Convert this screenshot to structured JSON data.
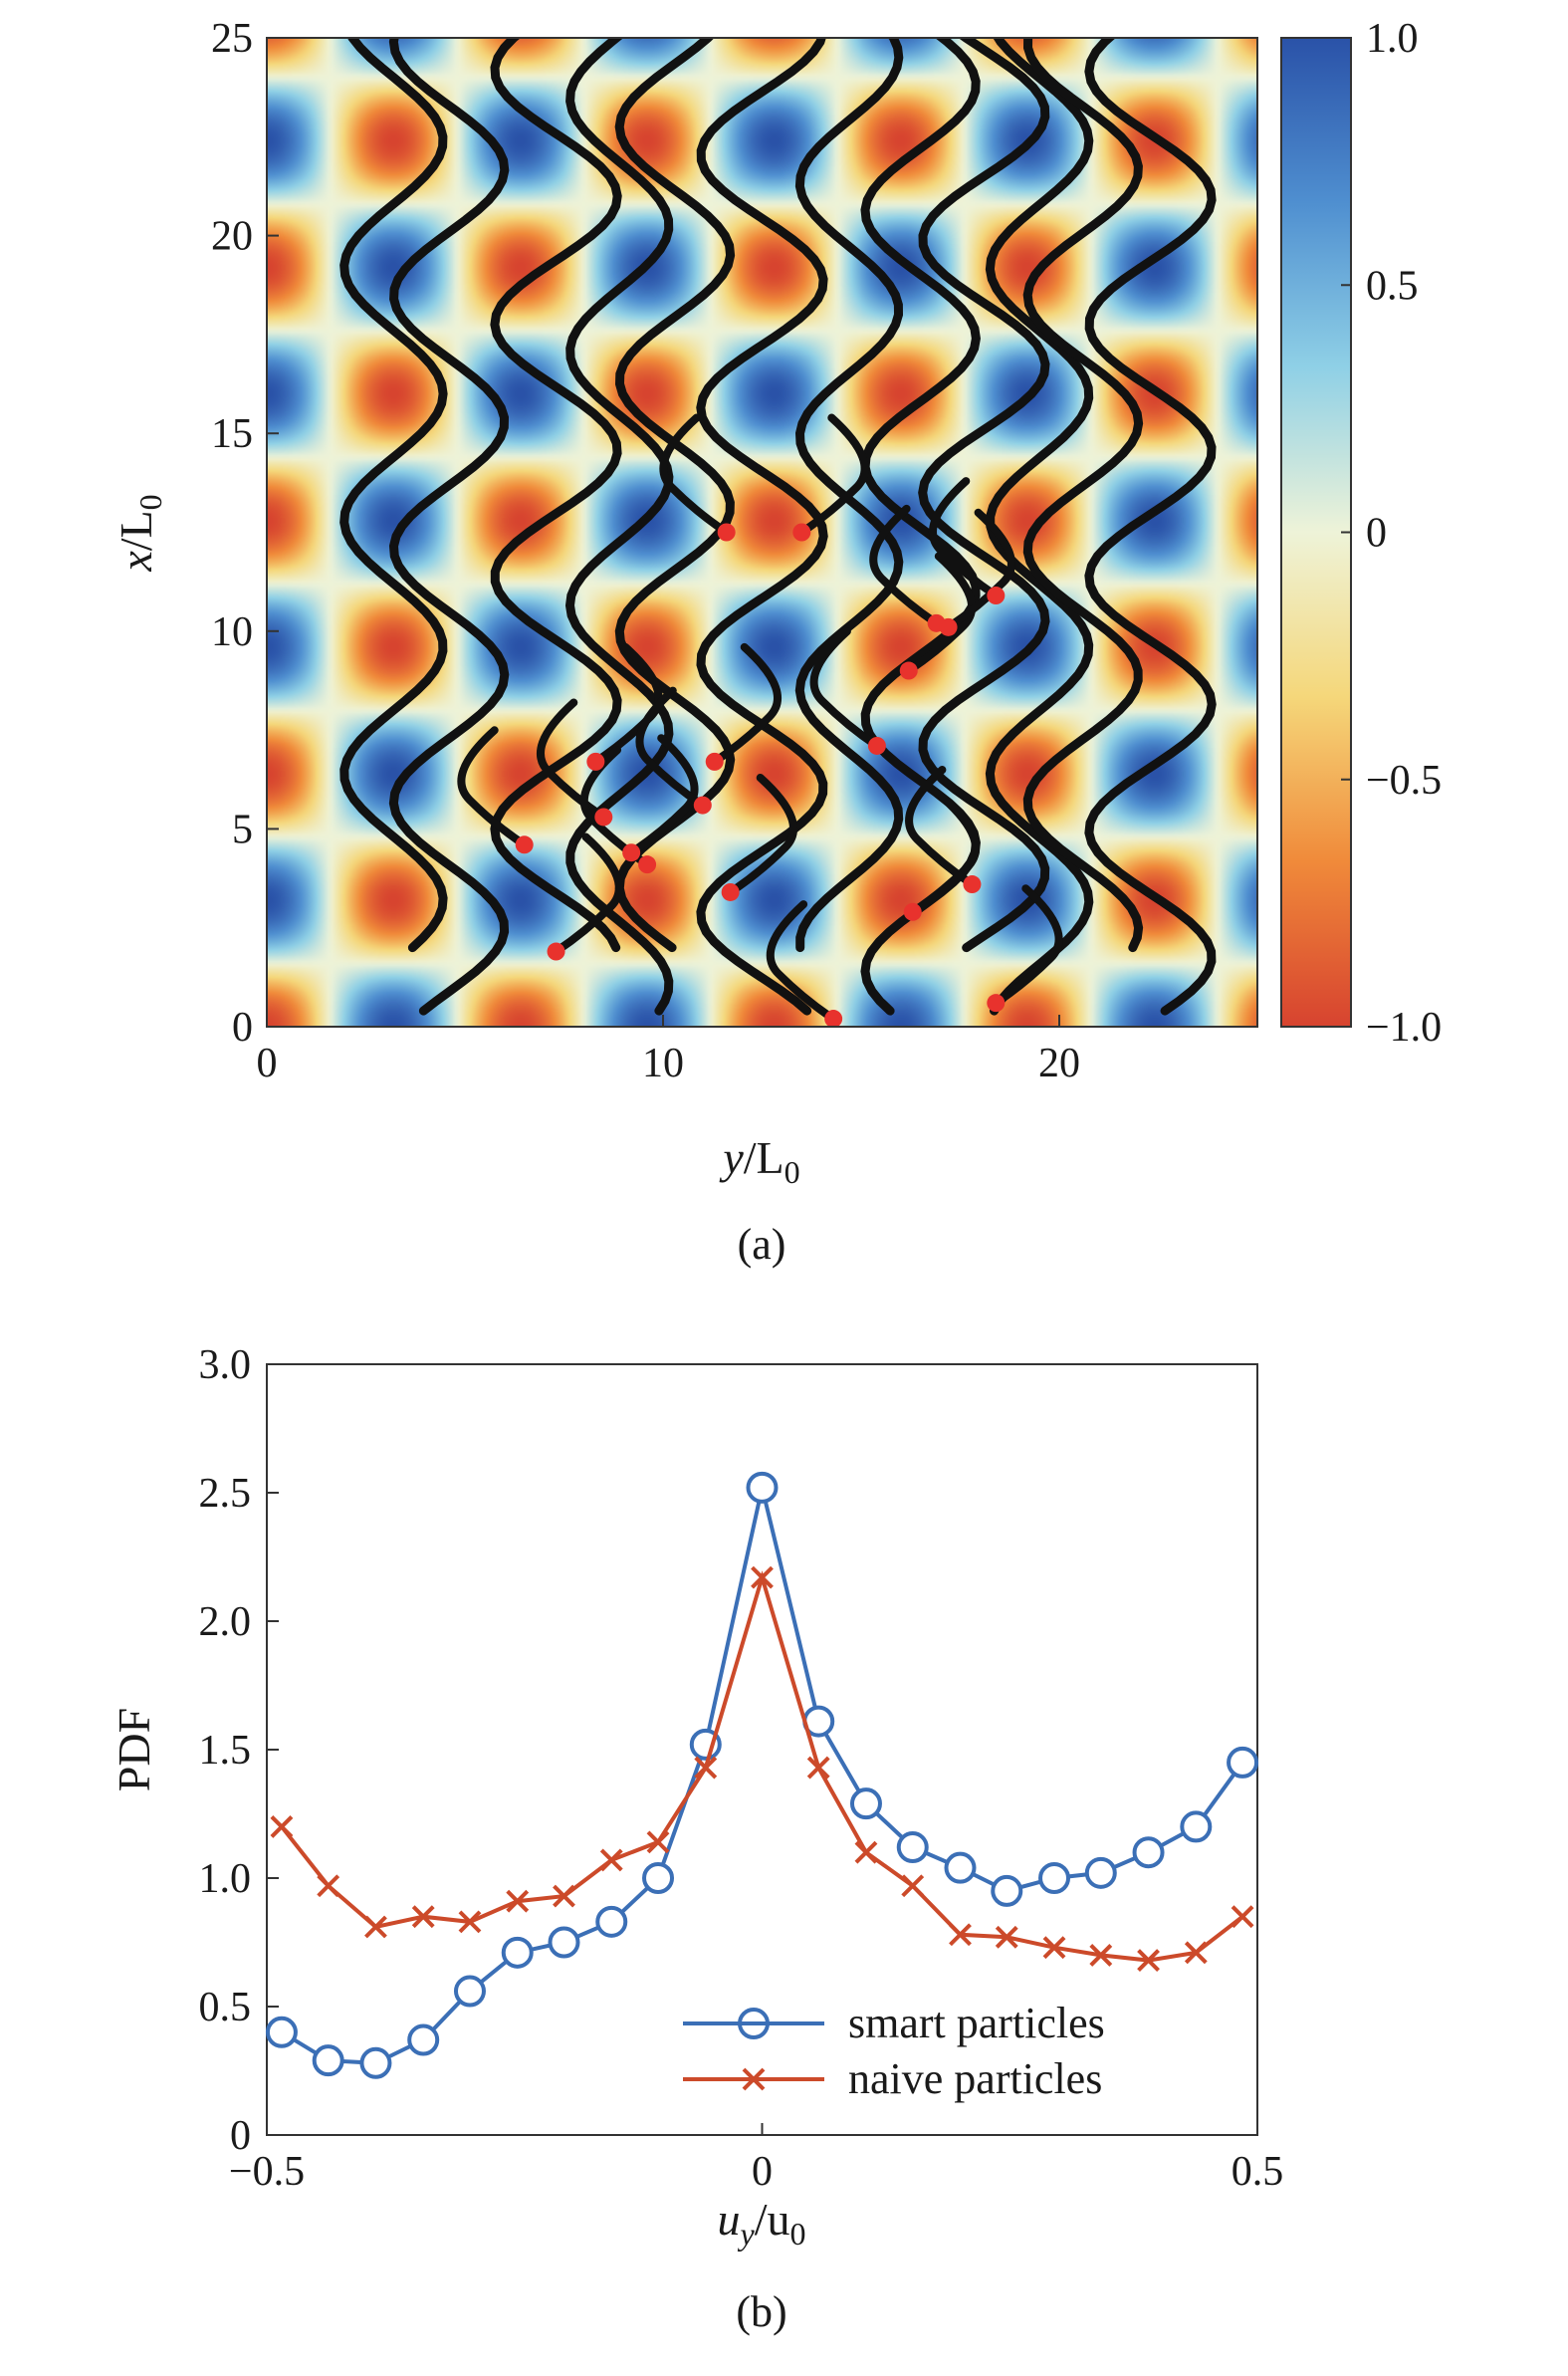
{
  "chart_data": [
    {
      "type": "heatmap",
      "panel_label": "(a)",
      "x_axis": {
        "label_main": "y",
        "label_sub": "0",
        "label_sep": "/L",
        "range": [
          0,
          25
        ],
        "ticks": [
          0,
          10,
          20
        ],
        "tick_labels": [
          "0",
          "10",
          "20"
        ]
      },
      "y_axis": {
        "label_main": "x",
        "label_sub": "0",
        "label_sep": "/L",
        "range": [
          0,
          25
        ],
        "ticks": [
          0,
          5,
          10,
          15,
          20,
          25
        ],
        "tick_labels": [
          "0",
          "5",
          "10",
          "15",
          "20",
          "25"
        ]
      },
      "field": {
        "description_period": 6.4,
        "kx_phase": 0.0
      },
      "colorbar": {
        "range": [
          -1.0,
          1.0
        ],
        "ticks": [
          1.0,
          0.5,
          0,
          -0.5,
          -1.0
        ],
        "tick_labels": [
          "1.0",
          "0.5",
          "0",
          "−0.5",
          "−1.0"
        ],
        "colors": [
          "#d7432f",
          "#f08a3a",
          "#f5d77a",
          "#eef3d8",
          "#8fd0e6",
          "#4f8fd0",
          "#2a52a8"
        ]
      },
      "trajectory_color": "#111111",
      "end_marker_color": "#e8322d",
      "end_points": [
        [
          7.3,
          1.9
        ],
        [
          6.5,
          4.6
        ],
        [
          8.3,
          6.7
        ],
        [
          8.5,
          5.3
        ],
        [
          9.2,
          4.4
        ],
        [
          9.6,
          4.1
        ],
        [
          11.3,
          6.7
        ],
        [
          11.0,
          5.6
        ],
        [
          11.7,
          3.4
        ],
        [
          11.6,
          12.5
        ],
        [
          13.5,
          12.5
        ],
        [
          15.4,
          7.1
        ],
        [
          16.2,
          9.0
        ],
        [
          16.9,
          10.2
        ],
        [
          17.2,
          10.1
        ],
        [
          18.4,
          10.9
        ],
        [
          16.3,
          2.9
        ],
        [
          17.8,
          3.6
        ],
        [
          18.4,
          0.6
        ],
        [
          14.3,
          0.2
        ]
      ]
    },
    {
      "type": "line",
      "panel_label": "(b)",
      "x_axis": {
        "label_main": "u",
        "label_sub_main": "y",
        "label_sep": "/u",
        "label_sub": "0",
        "range": [
          -0.5,
          0.5
        ],
        "ticks": [
          -0.5,
          0,
          0.5
        ],
        "tick_labels": [
          "−0.5",
          "0",
          "0.5"
        ]
      },
      "y_axis": {
        "label": "PDF",
        "range": [
          0,
          3.0
        ],
        "ticks": [
          0,
          0.5,
          1.0,
          1.5,
          2.0,
          2.5,
          3.0
        ],
        "tick_labels": [
          "0",
          "0.5",
          "1.0",
          "1.5",
          "2.0",
          "2.5",
          "3.0"
        ]
      },
      "x": [
        -0.485,
        -0.438,
        -0.39,
        -0.342,
        -0.295,
        -0.247,
        -0.2,
        -0.152,
        -0.105,
        -0.057,
        0.0,
        0.057,
        0.105,
        0.152,
        0.2,
        0.247,
        0.295,
        0.342,
        0.39,
        0.438,
        0.485
      ],
      "series": [
        {
          "name": "smart particles",
          "color": "#3b6fb6",
          "marker": "circle",
          "values": [
            0.4,
            0.29,
            0.28,
            0.37,
            0.56,
            0.71,
            0.75,
            0.83,
            1.0,
            1.52,
            2.52,
            1.61,
            1.29,
            1.12,
            1.04,
            0.95,
            1.0,
            1.02,
            1.1,
            1.2,
            1.45
          ]
        },
        {
          "name": "naive particles",
          "color": "#cc4a2a",
          "marker": "x",
          "values": [
            1.2,
            0.97,
            0.81,
            0.85,
            0.83,
            0.91,
            0.93,
            1.07,
            1.14,
            1.43,
            2.17,
            1.43,
            1.1,
            0.97,
            0.78,
            0.77,
            0.73,
            0.7,
            0.68,
            0.71,
            0.85
          ]
        }
      ],
      "legend_position": "bottom-right"
    }
  ]
}
